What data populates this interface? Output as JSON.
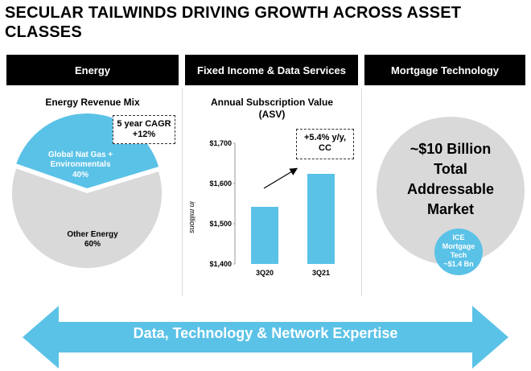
{
  "title": "SECULAR TAILWINDS DRIVING GROWTH ACROSS ASSET CLASSES",
  "sections": [
    {
      "label": "Energy"
    },
    {
      "label": "Fixed Income & Data Services"
    },
    {
      "label": "Mortgage Technology"
    }
  ],
  "energy": {
    "subtitle": "Energy Revenue Mix",
    "cagr_line1": "5 year CAGR",
    "cagr_line2": "+12%"
  },
  "fixed_income": {
    "subtitle_line1": "Annual Subscription Value",
    "subtitle_line2": "(ASV)",
    "growth_line1": "+5.4% y/y,",
    "growth_line2": "CC"
  },
  "mortgage": {
    "line1": "~$10 Billion",
    "line2": "Total",
    "line3": "Addressable",
    "line4": "Market",
    "ice_line1": "ICE",
    "ice_line2": "Mortgage",
    "ice_line3": "Tech",
    "ice_line4": "~$1.4 Bn"
  },
  "footer_arrow": {
    "label": "Data, Technology & Network Expertise",
    "color": "#5bc2e7"
  },
  "chart_data": [
    {
      "type": "pie",
      "title": "Energy Revenue Mix",
      "slices": [
        {
          "label_line1": "Global Nat Gas +",
          "label_line2": "Environmentals",
          "value_label": "40%",
          "value": 40,
          "color": "#5bc2e7"
        },
        {
          "label_line1": "Other Energy",
          "label_line2": "",
          "value_label": "60%",
          "value": 60,
          "color": "#d9d9d9"
        }
      ]
    },
    {
      "type": "bar",
      "title": "Annual Subscription Value (ASV)",
      "ylabel": "in millions",
      "categories": [
        "3Q20",
        "3Q21"
      ],
      "values": [
        1542,
        1624
      ],
      "ylim": [
        1400,
        1700
      ],
      "yticks": [
        1400,
        1500,
        1600,
        1700
      ],
      "ytick_labels": [
        "$1,400",
        "$1,500",
        "$1,600",
        "$1,700"
      ],
      "bar_color": "#5bc2e7",
      "grid": false
    }
  ]
}
